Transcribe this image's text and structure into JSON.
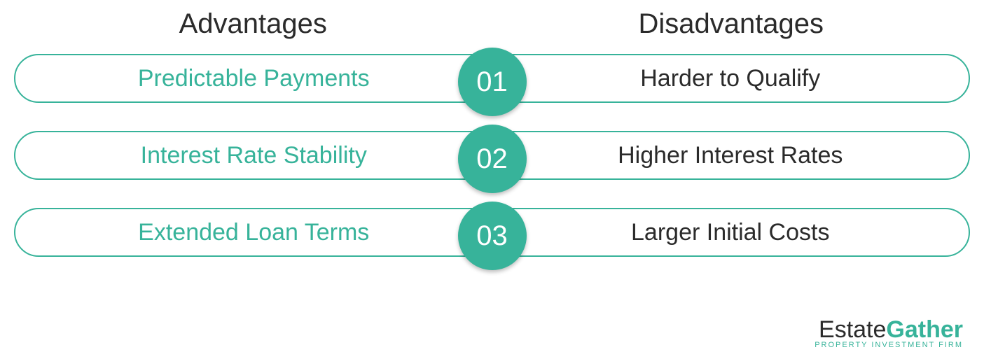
{
  "type": "infographic",
  "headers": {
    "left": "Advantages",
    "right": "Disadvantages"
  },
  "header_fontsize": 40,
  "header_color": "#2b2b2b",
  "rows": [
    {
      "number": "01",
      "advantage": "Predictable Payments",
      "disadvantage": "Harder to Qualify"
    },
    {
      "number": "02",
      "advantage": "Interest Rate Stability",
      "disadvantage": "Higher Interest Rates"
    },
    {
      "number": "03",
      "advantage": "Extended Loan Terms",
      "disadvantage": "Larger Initial Costs"
    }
  ],
  "row_fontsize": 34,
  "circle_fontsize": 40,
  "brand_color": "#37b39a",
  "text_dark": "#2b2b2b",
  "pill_border_color": "#37b39a",
  "circle_bg": "#37b39a",
  "circle_text_color": "#ffffff",
  "advantage_text_color": "#37b39a",
  "disadvantage_text_color": "#2b2b2b",
  "background_color": "#ffffff",
  "pill_height": 70,
  "pill_border_radius": 40,
  "circle_diameter": 98,
  "row_gap": 30,
  "logo": {
    "part1": "Estate",
    "part2": "Gather",
    "tagline": "PROPERTY INVESTMENT FIRM",
    "part1_color": "#2b2b2b",
    "part2_color": "#37b39a",
    "tagline_color": "#37b39a",
    "main_fontsize": 34,
    "tagline_fontsize": 11
  }
}
